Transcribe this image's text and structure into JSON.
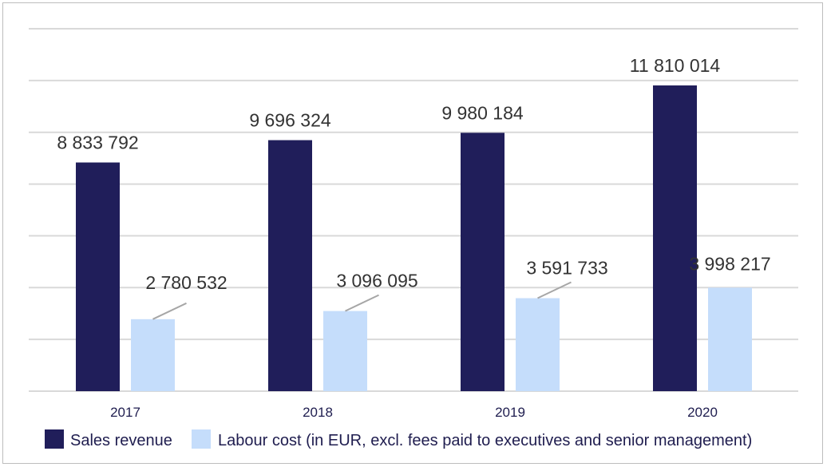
{
  "chart_data": {
    "type": "bar",
    "title": "",
    "xlabel": "",
    "ylabel": "",
    "categories": [
      "2017",
      "2018",
      "2019",
      "2020"
    ],
    "series": [
      {
        "name": "Sales revenue",
        "color": "#201e5a",
        "values": [
          8833792,
          9696324,
          9980184,
          11810014
        ],
        "labels": [
          "8 833 792",
          "9 696 324",
          "9 980 184",
          "11 810 014"
        ]
      },
      {
        "name": "Labour cost (in EUR, excl. fees paid to executives and senior management)",
        "color": "#c5ddfb",
        "values": [
          2780532,
          3096095,
          3591733,
          3998217
        ],
        "labels": [
          "2 780 532",
          "3 096 095",
          "3 591 733",
          "3 998 217"
        ]
      }
    ],
    "ylim": [
      0,
      14000000
    ],
    "y_gridline_step": 2000000,
    "grid": true,
    "y_tick_labels_shown": false,
    "legend_position": "bottom"
  }
}
